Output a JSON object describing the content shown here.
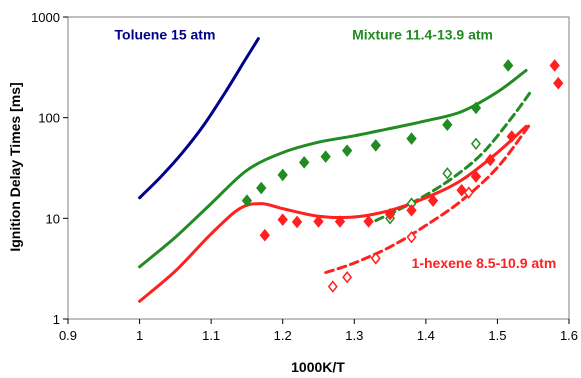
{
  "chart_data": {
    "type": "line",
    "title": "",
    "xlabel": "1000K/T",
    "ylabel": "Ignition Delay Times [ms]",
    "xlim": [
      0.9,
      1.6
    ],
    "ylim": [
      1,
      1000
    ],
    "y_scale": "log",
    "grid": false,
    "x_ticks": [
      "0.9",
      "1",
      "1.1",
      "1.2",
      "1.3",
      "1.4",
      "1.5",
      "1.6"
    ],
    "y_ticks": [
      "1",
      "10",
      "100",
      "1000"
    ],
    "annotations": [
      {
        "text": "Toluene 15 atm",
        "color": "#00008b",
        "x": 0.965,
        "y": 600
      },
      {
        "text": "Mixture  11.4-13.9 atm",
        "color": "#228b22",
        "x": 1.297,
        "y": 600
      },
      {
        "text": "1-hexene 8.5-10.9 atm",
        "color": "#ff2020",
        "x": 1.38,
        "y": 3.2
      }
    ],
    "series": [
      {
        "style": "line",
        "color": "#00008b",
        "x": [
          1.0,
          1.03,
          1.06,
          1.09,
          1.12,
          1.145,
          1.166
        ],
        "y": [
          16,
          26,
          45,
          85,
          180,
          350,
          610
        ]
      },
      {
        "style": "line",
        "color": "#228b22",
        "x": [
          1.0,
          1.05,
          1.1,
          1.15,
          1.2,
          1.25,
          1.3,
          1.35,
          1.4,
          1.45,
          1.5,
          1.54
        ],
        "y": [
          3.3,
          6.5,
          14,
          30,
          45,
          57,
          66,
          78,
          93,
          115,
          180,
          295
        ]
      },
      {
        "style": "dashed",
        "color": "#228b22",
        "x": [
          1.33,
          1.36,
          1.4,
          1.44,
          1.48,
          1.52,
          1.545
        ],
        "y": [
          9.5,
          12,
          17,
          26,
          45,
          100,
          175
        ]
      },
      {
        "style": "line",
        "color": "#ff2020",
        "x": [
          1.0,
          1.05,
          1.1,
          1.14,
          1.17,
          1.2,
          1.25,
          1.3,
          1.35,
          1.4,
          1.45,
          1.5,
          1.54
        ],
        "y": [
          1.5,
          3.0,
          7.0,
          12.5,
          14,
          12.5,
          10.5,
          10.3,
          12,
          16,
          24,
          45,
          82
        ]
      },
      {
        "style": "dashed",
        "color": "#ff2020",
        "x": [
          1.26,
          1.3,
          1.35,
          1.4,
          1.45,
          1.5,
          1.545
        ],
        "y": [
          2.9,
          3.6,
          5.2,
          8.5,
          15,
          32,
          85
        ]
      },
      {
        "style": "markers",
        "marker": "filled-diamond",
        "color": "#228b22",
        "x": [
          1.15,
          1.17,
          1.2,
          1.23,
          1.26,
          1.29,
          1.33,
          1.38,
          1.43,
          1.47,
          1.515
        ],
        "y": [
          15,
          20,
          27,
          36,
          41,
          47,
          53,
          62,
          85,
          125,
          330
        ]
      },
      {
        "style": "markers",
        "marker": "open-diamond",
        "color": "#228b22",
        "x": [
          1.35,
          1.38,
          1.43,
          1.47
        ],
        "y": [
          10,
          14,
          28,
          55
        ]
      },
      {
        "style": "markers",
        "marker": "filled-diamond",
        "color": "#ff2020",
        "x": [
          1.175,
          1.2,
          1.22,
          1.25,
          1.28,
          1.32,
          1.35,
          1.38,
          1.41,
          1.45,
          1.47,
          1.49,
          1.52,
          1.58,
          1.585
        ],
        "y": [
          6.8,
          9.7,
          9.2,
          9.3,
          9.3,
          9.3,
          11,
          12,
          15,
          19,
          26,
          38,
          65,
          330,
          220
        ]
      },
      {
        "style": "markers",
        "marker": "open-diamond",
        "color": "#ff2020",
        "x": [
          1.27,
          1.29,
          1.33,
          1.38,
          1.46
        ],
        "y": [
          2.1,
          2.6,
          4.0,
          6.5,
          18
        ]
      }
    ]
  }
}
